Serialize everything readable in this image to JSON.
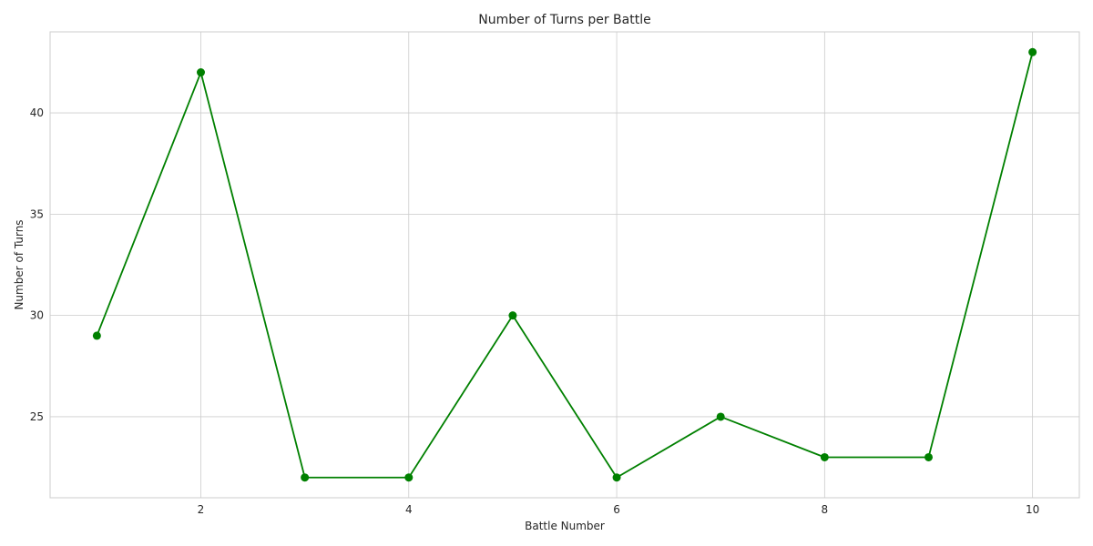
{
  "chart_data": {
    "type": "line",
    "title": "Number of Turns per Battle",
    "xlabel": "Battle Number",
    "ylabel": "Number of Turns",
    "x": [
      1,
      2,
      3,
      4,
      5,
      6,
      7,
      8,
      9,
      10
    ],
    "series": [
      {
        "values": [
          29,
          42,
          22,
          22,
          30,
          22,
          25,
          23,
          23,
          43
        ],
        "color": "#008000",
        "marker": "circle"
      }
    ],
    "xlim": [
      0.55,
      10.45
    ],
    "ylim": [
      21.0,
      44.0
    ],
    "xticks": [
      2,
      4,
      6,
      8,
      10
    ],
    "yticks": [
      25,
      30,
      35,
      40
    ],
    "grid": true,
    "legend": "none"
  }
}
